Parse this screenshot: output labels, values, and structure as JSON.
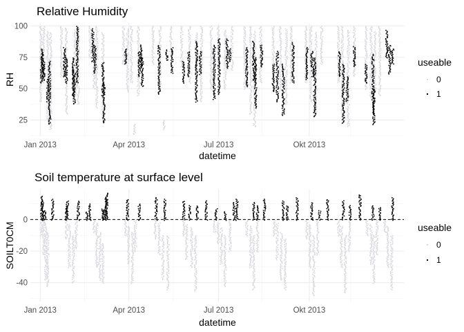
{
  "chart_data": [
    {
      "type": "scatter",
      "title": "Relative Humidity",
      "xlabel": "datetime",
      "ylabel": "RH",
      "xlim": [
        "2012-12-22",
        "2014-01-05"
      ],
      "ylim": [
        12,
        102
      ],
      "x_ticks": [
        {
          "date": "2013-01-01",
          "label": "Jan 2013"
        },
        {
          "date": "2013-04-01",
          "label": "Apr 2013"
        },
        {
          "date": "2013-07-01",
          "label": "Jul 2013"
        },
        {
          "date": "2013-10-01",
          "label": "Okt 2013"
        }
      ],
      "y_ticks": [
        25,
        50,
        75,
        100
      ],
      "legend": {
        "title": "useable",
        "position": "right",
        "entries": [
          "0",
          "1"
        ]
      },
      "colors": {
        "0": "#d9d9de",
        "1": "#000000"
      },
      "series": [
        {
          "name": "0",
          "segments": [
            [
              "2013-01-01",
              40,
              100
            ],
            [
              "2013-01-04",
              55,
              100
            ],
            [
              "2013-01-08",
              25,
              96
            ],
            [
              "2013-01-11",
              18,
              95
            ],
            [
              "2013-01-22",
              60,
              100
            ],
            [
              "2013-01-27",
              30,
              99
            ],
            [
              "2013-02-05",
              45,
              97
            ],
            [
              "2013-02-08",
              38,
              100
            ],
            [
              "2013-02-20",
              75,
              100
            ],
            [
              "2013-02-24",
              50,
              90
            ],
            [
              "2013-02-27",
              35,
              100
            ],
            [
              "2013-03-05",
              25,
              95
            ],
            [
              "2013-03-26",
              70,
              100
            ],
            [
              "2013-03-30",
              48,
              98
            ],
            [
              "2013-04-03",
              55,
              100
            ],
            [
              "2013-04-06",
              14,
              22
            ],
            [
              "2013-04-10",
              45,
              100
            ],
            [
              "2013-04-25",
              70,
              100
            ],
            [
              "2013-05-02",
              52,
              100
            ],
            [
              "2013-05-06",
              18,
              25
            ],
            [
              "2013-05-13",
              75,
              100
            ],
            [
              "2013-05-24",
              68,
              100
            ],
            [
              "2013-06-01",
              55,
              100
            ],
            [
              "2013-06-08",
              60,
              95
            ],
            [
              "2013-06-13",
              40,
              100
            ],
            [
              "2013-06-23",
              50,
              100
            ],
            [
              "2013-06-30",
              68,
              100
            ],
            [
              "2013-07-07",
              50,
              97
            ],
            [
              "2013-07-14",
              65,
              100
            ],
            [
              "2013-07-27",
              50,
              100
            ],
            [
              "2013-08-02",
              30,
              100
            ],
            [
              "2013-08-06",
              20,
              96
            ],
            [
              "2013-08-12",
              55,
              100
            ],
            [
              "2013-08-25",
              65,
              100
            ],
            [
              "2013-09-01",
              48,
              100
            ],
            [
              "2013-09-07",
              38,
              98
            ],
            [
              "2013-09-12",
              55,
              100
            ],
            [
              "2013-09-27",
              55,
              100
            ],
            [
              "2013-10-02",
              40,
              100
            ],
            [
              "2013-10-07",
              30,
              95
            ],
            [
              "2013-10-13",
              70,
              100
            ],
            [
              "2013-10-30",
              55,
              100
            ],
            [
              "2013-11-03",
              28,
              100
            ],
            [
              "2013-11-09",
              20,
              97
            ],
            [
              "2013-11-15",
              60,
              100
            ],
            [
              "2013-11-27",
              50,
              100
            ],
            [
              "2013-12-02",
              42,
              100
            ],
            [
              "2013-12-06",
              48,
              96
            ],
            [
              "2013-12-11",
              45,
              100
            ]
          ]
        },
        {
          "name": "1",
          "segments": [
            [
              "2013-01-02",
              55,
              82
            ],
            [
              "2013-01-03",
              60,
              78
            ],
            [
              "2013-01-04",
              57,
              72
            ],
            [
              "2013-01-08",
              40,
              58
            ],
            [
              "2013-01-10",
              22,
              72
            ],
            [
              "2013-01-25",
              60,
              83
            ],
            [
              "2013-01-27",
              55,
              75
            ],
            [
              "2013-02-03",
              45,
              75
            ],
            [
              "2013-02-04",
              38,
              65
            ],
            [
              "2013-02-07",
              55,
              100
            ],
            [
              "2013-02-23",
              72,
              98
            ],
            [
              "2013-02-25",
              63,
              85
            ],
            [
              "2013-03-05",
              45,
              71
            ],
            [
              "2013-03-06",
              23,
              55
            ],
            [
              "2013-03-28",
              70,
              82
            ],
            [
              "2013-04-11",
              60,
              80
            ],
            [
              "2013-04-13",
              68,
              85
            ],
            [
              "2013-04-14",
              52,
              75
            ],
            [
              "2013-05-01",
              46,
              85
            ],
            [
              "2013-05-09",
              73,
              81
            ],
            [
              "2013-05-14",
              63,
              83
            ],
            [
              "2013-05-26",
              55,
              72
            ],
            [
              "2013-05-31",
              60,
              80
            ],
            [
              "2013-06-08",
              40,
              88
            ],
            [
              "2013-06-12",
              62,
              80
            ],
            [
              "2013-06-26",
              42,
              85
            ],
            [
              "2013-07-01",
              46,
              90
            ],
            [
              "2013-07-09",
              67,
              90
            ],
            [
              "2013-07-12",
              72,
              82
            ],
            [
              "2013-07-29",
              52,
              83
            ],
            [
              "2013-08-05",
              57,
              88
            ],
            [
              "2013-08-07",
              35,
              75
            ],
            [
              "2013-08-13",
              68,
              85
            ],
            [
              "2013-08-25",
              48,
              70
            ],
            [
              "2013-08-29",
              40,
              80
            ],
            [
              "2013-09-04",
              29,
              70
            ],
            [
              "2013-09-14",
              55,
              87
            ],
            [
              "2013-09-28",
              58,
              83
            ],
            [
              "2013-10-03",
              68,
              80
            ],
            [
              "2013-10-04",
              60,
              68
            ],
            [
              "2013-10-06",
              28,
              75
            ],
            [
              "2013-10-31",
              60,
              80
            ],
            [
              "2013-11-04",
              23,
              70
            ],
            [
              "2013-11-08",
              40,
              60
            ],
            [
              "2013-11-15",
              68,
              84
            ],
            [
              "2013-11-27",
              55,
              70
            ],
            [
              "2013-12-04",
              30,
              78
            ],
            [
              "2013-12-05",
              22,
              50
            ],
            [
              "2013-12-18",
              75,
              97
            ],
            [
              "2013-12-21",
              62,
              85
            ],
            [
              "2013-12-24",
              70,
              82
            ]
          ]
        }
      ]
    },
    {
      "type": "scatter",
      "title": "Soil temperature at surface level",
      "xlabel": "datetime",
      "ylabel": "SOILT0CM",
      "xlim": [
        "2012-12-22",
        "2014-01-05"
      ],
      "ylim": [
        -52,
        19
      ],
      "x_ticks": [
        {
          "date": "2013-01-01",
          "label": "Jan 2013"
        },
        {
          "date": "2013-04-01",
          "label": "Apr 2013"
        },
        {
          "date": "2013-07-01",
          "label": "Jul 2013"
        },
        {
          "date": "2013-10-01",
          "label": "Okt 2013"
        }
      ],
      "y_ticks": [
        -40,
        -20,
        0
      ],
      "reference_line": {
        "y": 0,
        "style": "dashed"
      },
      "legend": {
        "title": "useable",
        "position": "right",
        "entries": [
          "0",
          "1"
        ]
      },
      "colors": {
        "0": "#d9d9de",
        "1": "#000000"
      },
      "series": [
        {
          "name": "0",
          "segments": [
            [
              "2013-01-02",
              -10,
              0
            ],
            [
              "2013-01-04",
              -22,
              0
            ],
            [
              "2013-01-06",
              -38,
              -2
            ],
            [
              "2013-01-08",
              -42,
              -8
            ],
            [
              "2013-01-27",
              -12,
              0
            ],
            [
              "2013-01-30",
              -30,
              -3
            ],
            [
              "2013-02-03",
              -40,
              -10
            ],
            [
              "2013-02-06",
              -18,
              0
            ],
            [
              "2013-02-24",
              -8,
              0
            ],
            [
              "2013-02-27",
              -30,
              -2
            ],
            [
              "2013-03-02",
              -38,
              -8
            ],
            [
              "2013-03-05",
              -40,
              -15
            ],
            [
              "2013-03-28",
              -10,
              0
            ],
            [
              "2013-03-31",
              -28,
              -4
            ],
            [
              "2013-04-04",
              -40,
              -8
            ],
            [
              "2013-04-07",
              -20,
              0
            ],
            [
              "2013-04-27",
              -12,
              0
            ],
            [
              "2013-05-01",
              -22,
              -2
            ],
            [
              "2013-05-05",
              -38,
              -10
            ],
            [
              "2013-05-10",
              -44,
              -10
            ],
            [
              "2013-05-26",
              -10,
              0
            ],
            [
              "2013-05-29",
              -25,
              -3
            ],
            [
              "2013-06-03",
              -30,
              -5
            ],
            [
              "2013-06-07",
              -45,
              -10
            ],
            [
              "2013-06-26",
              -8,
              0
            ],
            [
              "2013-06-30",
              -15,
              -2
            ],
            [
              "2013-07-03",
              -28,
              -5
            ],
            [
              "2013-07-07",
              -42,
              -10
            ],
            [
              "2013-07-12",
              -20,
              0
            ],
            [
              "2013-07-29",
              -10,
              0
            ],
            [
              "2013-08-02",
              -30,
              -4
            ],
            [
              "2013-08-05",
              -44,
              -10
            ],
            [
              "2013-08-09",
              -20,
              0
            ],
            [
              "2013-08-26",
              -10,
              0
            ],
            [
              "2013-08-29",
              -25,
              -2
            ],
            [
              "2013-09-02",
              -38,
              -8
            ],
            [
              "2013-09-06",
              -44,
              -12
            ],
            [
              "2013-09-28",
              -12,
              0
            ],
            [
              "2013-10-01",
              -30,
              -3
            ],
            [
              "2013-10-05",
              -48,
              -10
            ],
            [
              "2013-10-09",
              -22,
              0
            ],
            [
              "2013-10-30",
              -10,
              0
            ],
            [
              "2013-11-02",
              -30,
              -4
            ],
            [
              "2013-11-06",
              -46,
              -10
            ],
            [
              "2013-11-10",
              -20,
              0
            ],
            [
              "2013-11-28",
              -10,
              0
            ],
            [
              "2013-12-02",
              -28,
              -3
            ],
            [
              "2013-12-05",
              -40,
              -10
            ],
            [
              "2013-12-08",
              -22,
              0
            ],
            [
              "2013-12-16",
              -8,
              0
            ],
            [
              "2013-12-19",
              -30,
              -4
            ],
            [
              "2013-12-23",
              -44,
              -10
            ]
          ]
        },
        {
          "name": "1",
          "segments": [
            [
              "2013-01-02",
              0,
              15
            ],
            [
              "2013-01-03",
              0,
              12
            ],
            [
              "2013-01-05",
              0,
              6
            ],
            [
              "2013-01-13",
              0,
              13
            ],
            [
              "2013-01-27",
              0,
              9
            ],
            [
              "2013-01-28",
              0,
              12
            ],
            [
              "2013-02-08",
              0,
              12
            ],
            [
              "2013-02-17",
              0,
              5
            ],
            [
              "2013-02-20",
              0,
              10
            ],
            [
              "2013-03-05",
              0,
              7
            ],
            [
              "2013-03-06",
              0,
              6
            ],
            [
              "2013-03-08",
              0,
              14
            ],
            [
              "2013-03-09",
              0,
              17
            ],
            [
              "2013-03-30",
              0,
              13
            ],
            [
              "2013-04-11",
              0,
              10
            ],
            [
              "2013-04-28",
              0,
              14
            ],
            [
              "2013-05-07",
              0,
              13
            ],
            [
              "2013-05-26",
              0,
              12
            ],
            [
              "2013-06-01",
              0,
              9
            ],
            [
              "2013-06-09",
              0,
              9
            ],
            [
              "2013-06-18",
              0,
              12
            ],
            [
              "2013-06-28",
              0,
              7
            ],
            [
              "2013-07-07",
              0,
              5
            ],
            [
              "2013-07-16",
              0,
              11
            ],
            [
              "2013-07-19",
              0,
              13
            ],
            [
              "2013-08-05",
              0,
              11
            ],
            [
              "2013-08-09",
              0,
              9
            ],
            [
              "2013-08-16",
              0,
              13
            ],
            [
              "2013-09-04",
              0,
              12
            ],
            [
              "2013-09-08",
              0,
              9
            ],
            [
              "2013-09-18",
              0,
              14
            ],
            [
              "2013-10-03",
              0,
              11
            ],
            [
              "2013-10-11",
              0,
              6
            ],
            [
              "2013-10-19",
              0,
              13
            ],
            [
              "2013-11-04",
              0,
              12
            ],
            [
              "2013-11-11",
              0,
              9
            ],
            [
              "2013-11-21",
              0,
              16
            ],
            [
              "2013-12-04",
              0,
              9
            ],
            [
              "2013-12-11",
              0,
              8
            ],
            [
              "2013-12-24",
              0,
              14
            ]
          ]
        }
      ]
    }
  ]
}
